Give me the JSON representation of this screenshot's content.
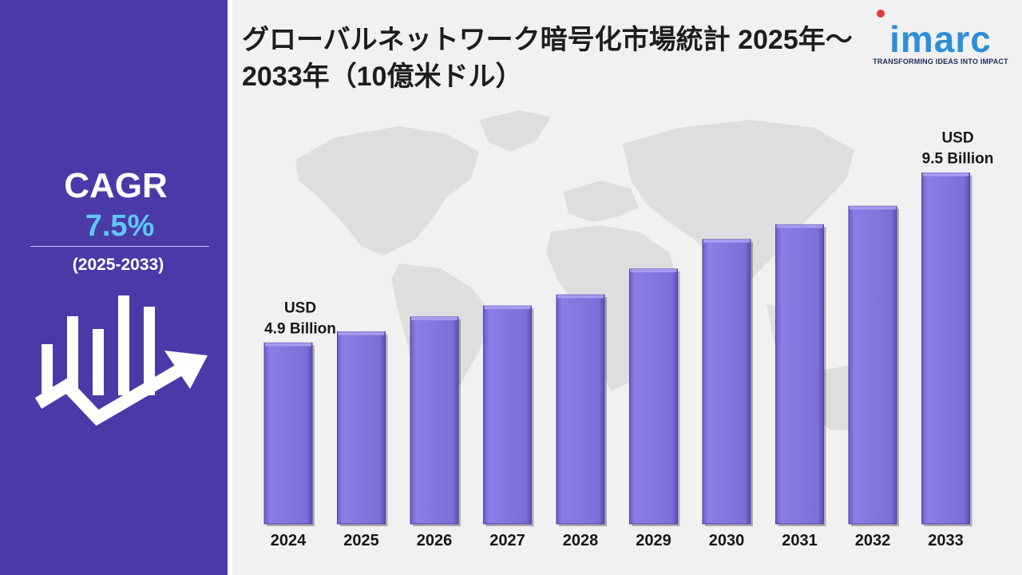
{
  "title": "グローバルネットワーク暗号化市場統計 2025年～2033年（10億米ドル）",
  "brand": {
    "name": "imarc",
    "tagline": "TRANSFORMING IDEAS INTO IMPACT",
    "color": "#2e8fd8",
    "dot_color": "#e63939"
  },
  "sidebar": {
    "cagr_label": "CAGR",
    "cagr_value": "7.5%",
    "period": "(2025-2033)",
    "background": "#4a3aa8",
    "value_color": "#5ec8f5",
    "icon": "growth-chart-arrow-icon"
  },
  "chart_data": {
    "type": "bar",
    "title": "グローバルネットワーク暗号化市場統計 2025年～2033年（10億米ドル）",
    "categories": [
      "2024",
      "2025",
      "2026",
      "2027",
      "2028",
      "2029",
      "2030",
      "2031",
      "2032",
      "2033"
    ],
    "values": [
      4.9,
      5.2,
      5.6,
      5.9,
      6.2,
      6.9,
      7.7,
      8.1,
      8.6,
      9.5
    ],
    "ylim": [
      0,
      12
    ],
    "grid": false,
    "bar_color": "#7b6fd8",
    "annotations": [
      {
        "category": "2024",
        "lines": [
          "USD",
          "4.9 Billion"
        ]
      },
      {
        "category": "2033",
        "lines": [
          "USD",
          "9.5 Billion"
        ]
      }
    ]
  }
}
